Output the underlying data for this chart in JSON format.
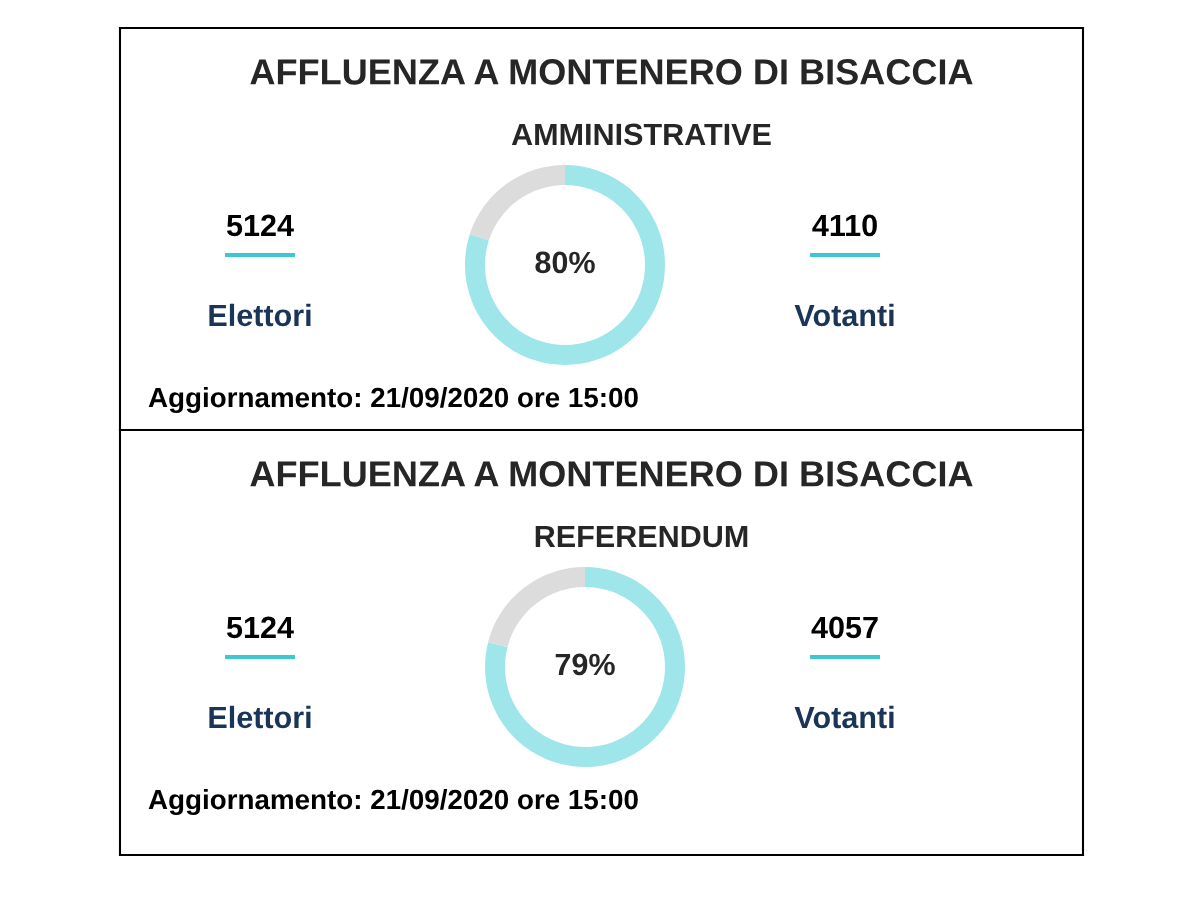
{
  "chart_data": [
    {
      "type": "donut",
      "title": "AFFLUENZA A MONTENERO DI BISACCIA",
      "subtitle": "AMMINISTRATIVE",
      "categories": [
        null,
        null
      ],
      "values": [
        80,
        20
      ],
      "colors": [
        "#9ee6ea",
        "#dcdcdc"
      ],
      "value_labels": [
        "80%",
        null
      ],
      "annotations": [
        "5124",
        "Elettori",
        "4110",
        "Votanti",
        "Aggiornamento: 21/09/2020 ore 15:00"
      ]
    },
    {
      "type": "donut",
      "title": "AFFLUENZA A MONTENERO DI BISACCIA",
      "subtitle": "REFERENDUM",
      "categories": [
        null,
        null
      ],
      "values": [
        79,
        21
      ],
      "colors": [
        "#9ee6ea",
        "#dcdcdc"
      ],
      "value_labels": [
        "79%",
        null
      ],
      "annotations": [
        "5124",
        "Elettori",
        "4057",
        "Votanti",
        "Aggiornamento: 21/09/2020 ore 15:00"
      ]
    }
  ]
}
